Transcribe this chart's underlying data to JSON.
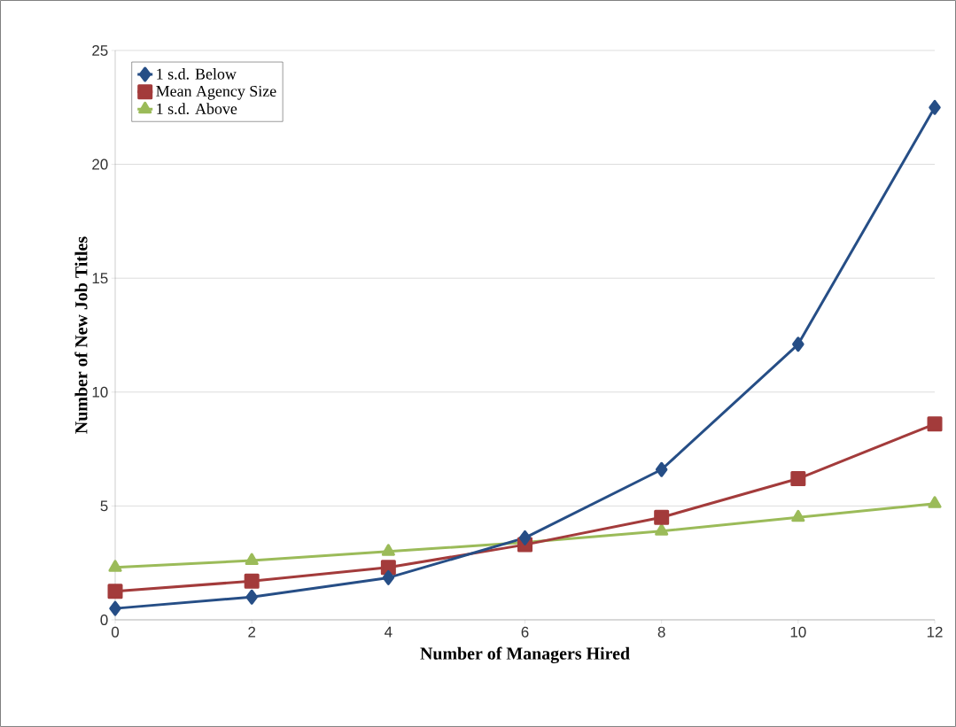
{
  "chart_data": {
    "type": "line",
    "xlabel": "Number of Managers Hired",
    "ylabel": "Number of New Job Titles",
    "x": [
      0,
      2,
      4,
      6,
      8,
      10,
      12
    ],
    "series": [
      {
        "name": "1 s.d. Below",
        "color": "#264e86",
        "marker": "diamond",
        "values": [
          0.5,
          1.0,
          1.85,
          3.6,
          6.6,
          12.1,
          22.5
        ]
      },
      {
        "name": "Mean Agency Size",
        "color": "#a33b3b",
        "marker": "square",
        "values": [
          1.25,
          1.7,
          2.3,
          3.3,
          4.5,
          6.2,
          8.6
        ]
      },
      {
        "name": "1 s.d. Above",
        "color": "#9bbb59",
        "marker": "triangle",
        "values": [
          2.3,
          2.6,
          3.0,
          3.4,
          3.9,
          4.5,
          5.1
        ]
      }
    ],
    "xlim": [
      0,
      12
    ],
    "ylim": [
      0,
      25
    ],
    "xticks": [
      0,
      2,
      4,
      6,
      8,
      10,
      12
    ],
    "yticks": [
      0,
      5,
      10,
      15,
      20,
      25
    ],
    "grid": "y",
    "legend": "top left",
    "line_style": "solid"
  }
}
